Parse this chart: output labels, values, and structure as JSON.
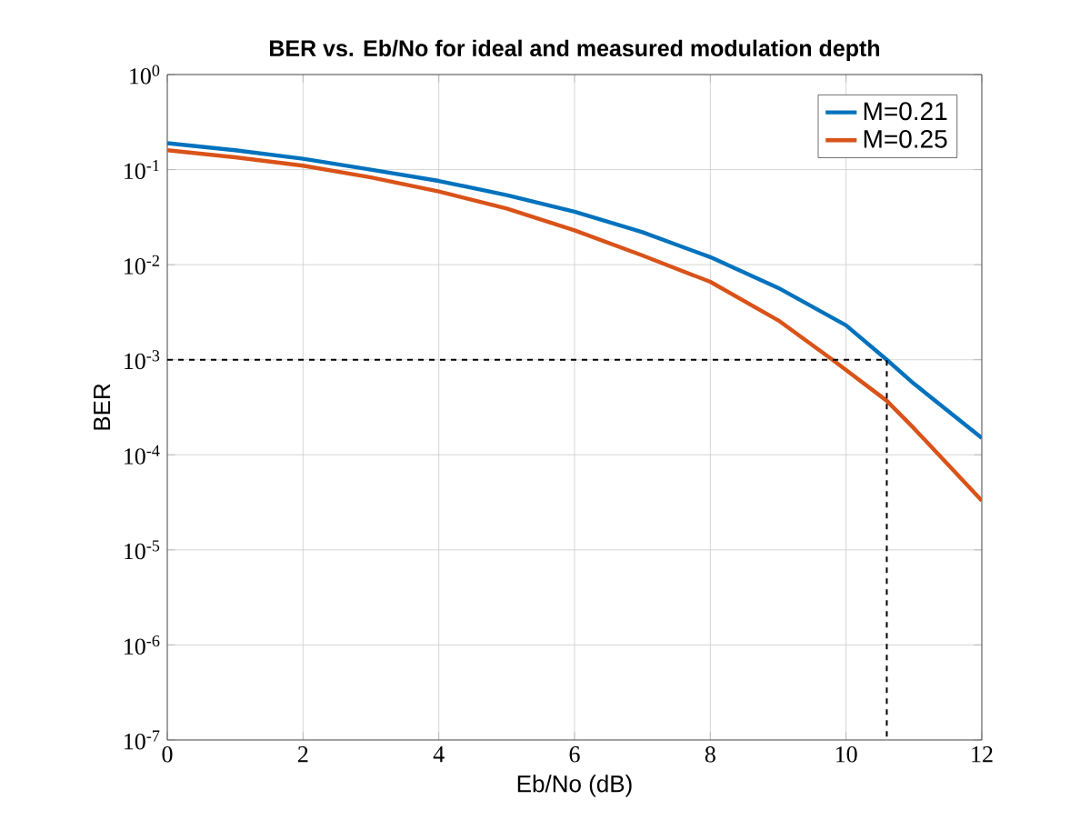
{
  "chart_data": {
    "type": "line",
    "title": "BER vs. Eb/No for ideal and measured modulation depth",
    "xlabel": "Eb/No (dB)",
    "ylabel": "BER",
    "log": "y",
    "grid": true,
    "legend": "top right",
    "xlim": [
      0,
      12
    ],
    "ylim": [
      1e-07,
      1
    ],
    "xticks": [
      0,
      2,
      4,
      6,
      8,
      10,
      12
    ],
    "yticks": [
      {
        "value": 1e-07,
        "label": "10$^{-7}$"
      },
      {
        "value": 1e-06,
        "label": "10$^{-6}$"
      },
      {
        "value": 1e-05,
        "label": "10$^{-5}$"
      },
      {
        "value": 0.0001,
        "label": "10$^{-4}$"
      },
      {
        "value": 0.001,
        "label": "10$^{-3}$"
      },
      {
        "value": 0.01,
        "label": "10$^{-2}$"
      },
      {
        "value": 0.1,
        "label": "10$^{-1}$"
      },
      {
        "value": 1,
        "label": "10$^{0}$"
      }
    ],
    "series": [
      {
        "name": "M=0.21",
        "color": "#0072bd",
        "x": [
          0,
          1,
          2,
          3,
          4,
          5,
          6,
          7,
          8,
          9,
          10,
          10.6,
          11,
          12
        ],
        "values": [
          0.19,
          0.16,
          0.13,
          0.1,
          0.076,
          0.054,
          0.036,
          0.022,
          0.012,
          0.0057,
          0.0023,
          0.001,
          0.00056,
          0.00015
        ]
      },
      {
        "name": "M=0.25",
        "color": "#d95319",
        "x": [
          0,
          1,
          2,
          3,
          4,
          5,
          6,
          7,
          8,
          9,
          9.8,
          10.6,
          11,
          12
        ],
        "values": [
          0.16,
          0.135,
          0.11,
          0.083,
          0.059,
          0.039,
          0.023,
          0.0125,
          0.0066,
          0.0026,
          0.001,
          0.00037,
          0.00019,
          3.3e-05
        ]
      },
      {
        "type": "line",
        "color": "#000000",
        "line_style": "dashed",
        "x": [
          0,
          10.6,
          10.6
        ],
        "values": [
          0.001,
          0.001,
          1e-07
        ]
      }
    ]
  }
}
